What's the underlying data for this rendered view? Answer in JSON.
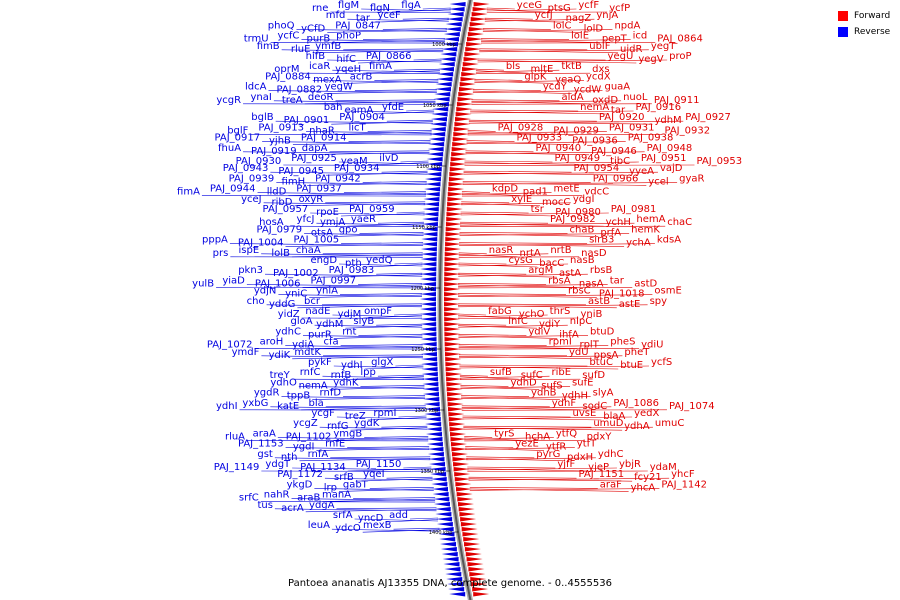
{
  "caption": "Pantoea ananatis AJ13355 DNA, complete genome. - 0..4555536",
  "legend": [
    {
      "label": "Forward",
      "color": "#ff0000"
    },
    {
      "label": "Reverse",
      "color": "#0000ff"
    }
  ],
  "colors": {
    "forward": "#e00000",
    "reverse": "#0000e0",
    "backbone": "#808080"
  },
  "ticks": [
    "1000 kbp",
    "1050 kbp",
    "1100 kbp",
    "1150 kbp",
    "1200 kbp",
    "1250 kbp",
    "1300 kbp",
    "1350 kbp",
    "1400 kbp"
  ],
  "reverse_genes": [
    "flgA",
    "flgN",
    "flgM",
    "rne",
    "yceF",
    "tar",
    "mfd",
    "PAJ_0847",
    "yCfD",
    "phoQ",
    "phoP",
    "purB",
    "ycfC",
    "trmU",
    "ymfB",
    "rluE",
    "fimB",
    "PAJ_0866",
    "hifC",
    "hifB",
    "fimA",
    "yqeH",
    "icaR",
    "oprM",
    "acrB",
    "mexA",
    "PAJ_0884",
    "yegW",
    "PAJ_0882",
    "ldcA",
    "deoR",
    "treA",
    "ynaI",
    "ycgR",
    "yfdE",
    "eamA",
    "bah",
    "PAJ_0904",
    "PAJ_0901",
    "bglB",
    "licT",
    "nhaR",
    "PAJ_0913",
    "bglF",
    "PAJ_0914",
    "yjhB",
    "PAJ_0917",
    "dapA",
    "PAJ_0919",
    "fhuA",
    "ilvD",
    "yeaM",
    "PAJ_0925",
    "PAJ_0930",
    "PAJ_0934",
    "PAJ_0945",
    "PAJ_0943",
    "PAJ_0942",
    "fimH",
    "PAJ_0939",
    "PAJ_0937",
    "lldD",
    "PAJ_0944",
    "fimA",
    "oxyR",
    "ribD",
    "yceJ",
    "PAJ_0959",
    "rpoE",
    "PAJ_0957",
    "yaeR",
    "ymjA",
    "yfcJ",
    "hosA",
    "gpo",
    "otsA",
    "PAJ_0979",
    "PAJ_1005",
    "PAJ_1004",
    "pppA",
    "chaA",
    "lolB",
    "ispE",
    "prs",
    "yedQ",
    "pth",
    "engD",
    "PAJ_0983",
    "PAJ_1002",
    "pkn3",
    "PAJ_0997",
    "PAJ_1006",
    "yiaD",
    "yulB",
    "yniA",
    "yniC",
    "ydjN",
    "bcr",
    "yddG",
    "cho",
    "ompF",
    "ydjM",
    "nadE",
    "yidZ",
    "slyB",
    "ydhM",
    "gloA",
    "rnt",
    "purR",
    "ydhC",
    "cfa",
    "ydiA",
    "aroH",
    "PAJ_1072",
    "mdtK",
    "ydiK",
    "ymdF",
    "glgX",
    "ydhI",
    "pykF",
    "lpp",
    "rnfB",
    "rnfC",
    "treY",
    "ydhK",
    "nemA",
    "ydhO",
    "rnfD",
    "tppB",
    "ygdR",
    "bla",
    "katE",
    "yxbG",
    "ydhI",
    "rpmI",
    "treZ",
    "ycgF",
    "ygdK",
    "rnfG",
    "ycgZ",
    "ymgB",
    "PAJ_1102",
    "araA",
    "rluA",
    "rnfE",
    "ygdI",
    "PAJ_1153",
    "rnfA",
    "nth",
    "gst",
    "PAJ_1150",
    "PAJ_1134",
    "ydgT",
    "PAJ_1149",
    "yqeI",
    "srfB",
    "PAJ_1172",
    "gabT",
    "lrp",
    "ykgD",
    "manA",
    "araB",
    "nahR",
    "srfC",
    "ydgA",
    "acrA",
    "tus",
    "add",
    "yncD",
    "srfA",
    "mexB",
    "ydcO",
    "leuA"
  ],
  "forward_genes": [
    "yceG",
    "ptsG",
    "ycfF",
    "ycfP",
    "ycfJ",
    "nagZ",
    "ynjA",
    "lolC",
    "lolD",
    "npdA",
    "lolE",
    "pepT",
    "icd",
    "PAJ_0864",
    "ubiF",
    "uidR",
    "yegT",
    "yegU",
    "yegV",
    "proP",
    "bls",
    "mltE",
    "tktB",
    "dxs",
    "glpK",
    "yeaQ",
    "ycdX",
    "ycdY",
    "ycdW",
    "guaA",
    "aldA",
    "oxdD",
    "nuoL",
    "PAJ_0911",
    "nemA",
    "tar",
    "PAJ_0916",
    "PAJ_0920",
    "ydhM",
    "PAJ_0927",
    "PAJ_0928",
    "PAJ_0929",
    "PAJ_0931",
    "PAJ_0932",
    "PAJ_0933",
    "PAJ_0936",
    "PAJ_0938",
    "PAJ_0940",
    "PAJ_0946",
    "PAJ_0948",
    "PAJ_0949",
    "tibC",
    "PAJ_0951",
    "PAJ_0953",
    "PAJ_0954",
    "yyeA",
    "vajD",
    "PAJ_0966",
    "ycel",
    "gyaR",
    "kdpD",
    "pad1",
    "metE",
    "vdcC",
    "xylE",
    "mocC",
    "ydgI",
    "tsr",
    "PAJ_0980",
    "PAJ_0981",
    "PAJ_0982",
    "ychH",
    "hemA",
    "chaC",
    "chaB",
    "prfA",
    "hemK",
    "sirB3",
    "ychA",
    "kdsA",
    "nasR",
    "nrtA",
    "nrtB",
    "nasD",
    "cysG",
    "bacC",
    "nasB",
    "argM",
    "astA",
    "rbsB",
    "rbsA",
    "nasA",
    "tar",
    "astD",
    "rbsC",
    "PAJ_1018",
    "osmE",
    "astB",
    "astE",
    "spy",
    "fabG",
    "ychO",
    "thrS",
    "yniB",
    "infC",
    "ydiY",
    "nlpC",
    "ydiV",
    "ihfA",
    "btuD",
    "rpmI",
    "rplT",
    "pheS",
    "ydiU",
    "ydU",
    "ppsA",
    "pheT",
    "btuC",
    "btuE",
    "ycfS",
    "sufB",
    "sufC",
    "ribE",
    "sufD",
    "ydhD",
    "sufS",
    "sufE",
    "ydhB",
    "ydhH",
    "slyA",
    "ydhF",
    "sodC",
    "PAJ_1086",
    "PAJ_1074",
    "uvsE",
    "blaA",
    "yedX",
    "umuD",
    "ydhA",
    "umuC",
    "tyrS",
    "hchA",
    "ytfQ",
    "pdxY",
    "yezE",
    "ytfR",
    "ytfT",
    "pyrG",
    "pdxH",
    "ydhC",
    "yjfF",
    "yjeP",
    "ybjR",
    "ydaM",
    "PAJ_1151",
    "fcy21",
    "yhcF",
    "araF",
    "yhcA",
    "PAJ_1142"
  ]
}
